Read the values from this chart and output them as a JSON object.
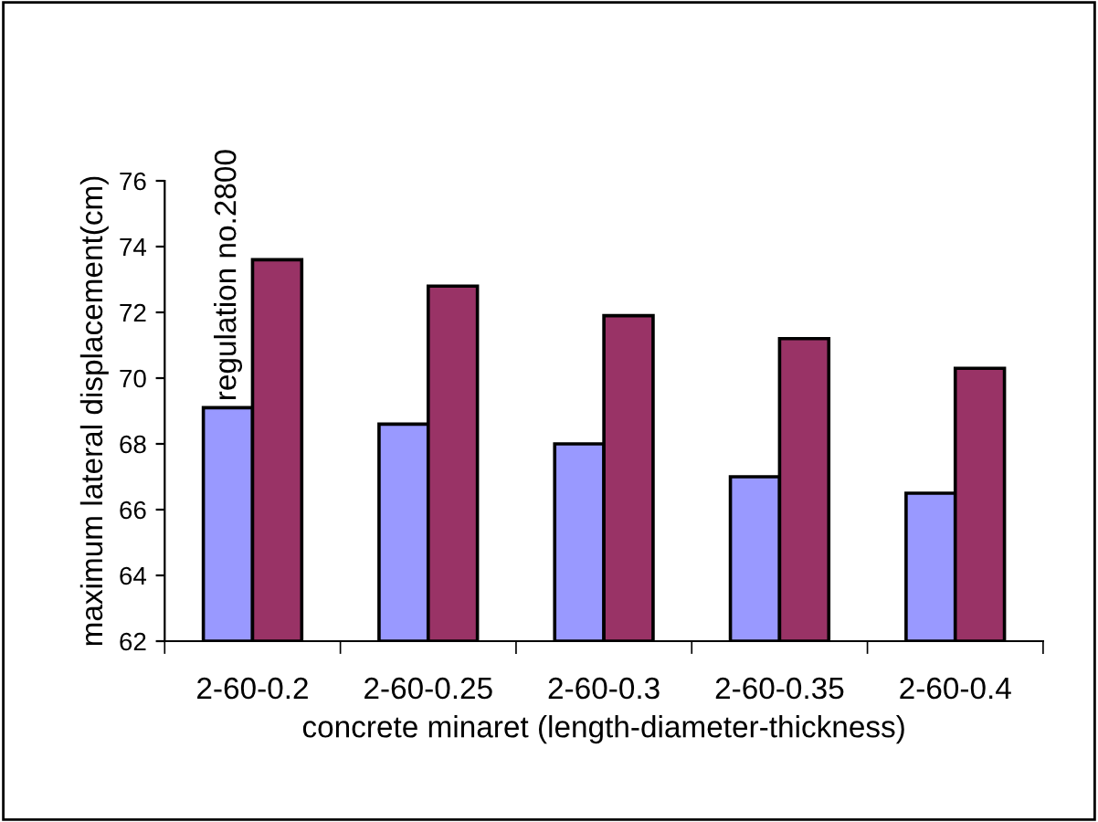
{
  "chart_data": {
    "type": "bar",
    "xlabel": "concrete minaret (length-diameter-thickness)",
    "ylabel": "maximum lateral displacement(cm)",
    "categories": [
      "2-60-0.2",
      "2-60-0.25",
      "2-60-0.3",
      "2-60-0.35",
      "2-60-0.4"
    ],
    "series": [
      {
        "name": "regulation no.2800",
        "color": "#9999ff",
        "values": [
          69.1,
          68.6,
          68.0,
          67.0,
          66.5
        ]
      },
      {
        "color": "#993366",
        "values": [
          73.6,
          72.8,
          71.9,
          71.2,
          70.3
        ]
      }
    ],
    "ylim": [
      62,
      76
    ],
    "yticks": [
      62,
      64,
      66,
      68,
      70,
      72,
      74,
      76
    ],
    "grid": false,
    "legend": false
  }
}
